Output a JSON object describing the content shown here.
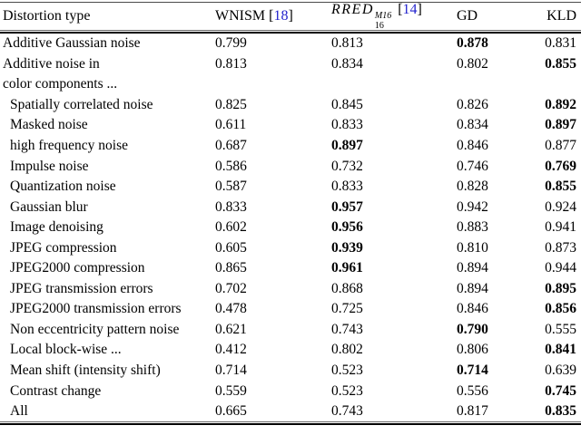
{
  "colors": {
    "link_blue": "#2323cd",
    "text": "#000000",
    "rule": "#000000"
  },
  "header": {
    "distortion_type": "Distortion type",
    "cite_open": "[",
    "cite_close": "]",
    "wnism": {
      "name": "WNISM",
      "cite": "18"
    },
    "rred": {
      "base": "RRED",
      "sup": "M16",
      "sub": "16",
      "cite": "14"
    },
    "gd": "GD",
    "kld": "KLD"
  },
  "rows": [
    {
      "label": "Additive Gaussian noise",
      "indent": false,
      "values": [
        {
          "text": "0.799",
          "bold": false
        },
        {
          "text": "0.813",
          "bold": false
        },
        {
          "text": "0.878",
          "bold": true
        },
        {
          "text": "0.831",
          "bold": false
        }
      ]
    },
    {
      "label": "Additive noise in",
      "indent": false,
      "values": [
        {
          "text": "0.813",
          "bold": false
        },
        {
          "text": "0.834",
          "bold": false
        },
        {
          "text": "0.802",
          "bold": false
        },
        {
          "text": "0.855",
          "bold": true
        }
      ]
    },
    {
      "label": "color components ...",
      "indent": false,
      "values": []
    },
    {
      "label": "Spatially correlated noise",
      "indent": true,
      "values": [
        {
          "text": "0.825",
          "bold": false
        },
        {
          "text": "0.845",
          "bold": false
        },
        {
          "text": "0.826",
          "bold": false
        },
        {
          "text": "0.892",
          "bold": true
        }
      ]
    },
    {
      "label": "Masked noise",
      "indent": true,
      "values": [
        {
          "text": "0.611",
          "bold": false
        },
        {
          "text": "0.833",
          "bold": false
        },
        {
          "text": "0.834",
          "bold": false
        },
        {
          "text": "0.897",
          "bold": true
        }
      ]
    },
    {
      "label": "high frequency noise",
      "indent": true,
      "values": [
        {
          "text": "0.687",
          "bold": false
        },
        {
          "text": "0.897",
          "bold": true
        },
        {
          "text": "0.846",
          "bold": false
        },
        {
          "text": "0.877",
          "bold": false
        }
      ]
    },
    {
      "label": "Impulse noise",
      "indent": true,
      "values": [
        {
          "text": "0.586",
          "bold": false
        },
        {
          "text": "0.732",
          "bold": false
        },
        {
          "text": "0.746",
          "bold": false
        },
        {
          "text": "0.769",
          "bold": true
        }
      ]
    },
    {
      "label": "Quantization noise",
      "indent": true,
      "values": [
        {
          "text": "0.587",
          "bold": false
        },
        {
          "text": "0.833",
          "bold": false
        },
        {
          "text": "0.828",
          "bold": false
        },
        {
          "text": "0.855",
          "bold": true
        }
      ]
    },
    {
      "label": "Gaussian blur",
      "indent": true,
      "values": [
        {
          "text": "0.833",
          "bold": false
        },
        {
          "text": "0.957",
          "bold": true
        },
        {
          "text": "0.942",
          "bold": false
        },
        {
          "text": "0.924",
          "bold": false
        }
      ]
    },
    {
      "label": "Image denoising",
      "indent": true,
      "values": [
        {
          "text": "0.602",
          "bold": false
        },
        {
          "text": "0.956",
          "bold": true
        },
        {
          "text": "0.883",
          "bold": false
        },
        {
          "text": "0.941",
          "bold": false
        }
      ]
    },
    {
      "label": "JPEG compression",
      "indent": true,
      "values": [
        {
          "text": "0.605",
          "bold": false
        },
        {
          "text": "0.939",
          "bold": true
        },
        {
          "text": "0.810",
          "bold": false
        },
        {
          "text": "0.873",
          "bold": false
        }
      ]
    },
    {
      "label": "JPEG2000 compression",
      "indent": true,
      "values": [
        {
          "text": "0.865",
          "bold": false
        },
        {
          "text": "0.961",
          "bold": true
        },
        {
          "text": "0.894",
          "bold": false
        },
        {
          "text": "0.944",
          "bold": false
        }
      ]
    },
    {
      "label": "JPEG transmission errors",
      "indent": true,
      "values": [
        {
          "text": "0.702",
          "bold": false
        },
        {
          "text": "0.868",
          "bold": false
        },
        {
          "text": "0.894",
          "bold": false
        },
        {
          "text": "0.895",
          "bold": true
        }
      ]
    },
    {
      "label": "JPEG2000 transmission errors",
      "indent": true,
      "values": [
        {
          "text": "0.478",
          "bold": false
        },
        {
          "text": "0.725",
          "bold": false
        },
        {
          "text": "0.846",
          "bold": false
        },
        {
          "text": "0.856",
          "bold": true
        }
      ]
    },
    {
      "label": "Non eccentricity pattern noise",
      "indent": true,
      "values": [
        {
          "text": "0.621",
          "bold": false
        },
        {
          "text": "0.743",
          "bold": false
        },
        {
          "text": "0.790",
          "bold": true
        },
        {
          "text": "0.555",
          "bold": false
        }
      ]
    },
    {
      "label": "Local block-wise ...",
      "indent": true,
      "values": [
        {
          "text": "0.412",
          "bold": false
        },
        {
          "text": "0.802",
          "bold": false
        },
        {
          "text": "0.806",
          "bold": false
        },
        {
          "text": "0.841",
          "bold": true
        }
      ]
    },
    {
      "label": "Mean shift (intensity shift)",
      "indent": true,
      "values": [
        {
          "text": "0.714",
          "bold": false
        },
        {
          "text": "0.523",
          "bold": false
        },
        {
          "text": "0.714",
          "bold": true
        },
        {
          "text": "0.639",
          "bold": false
        }
      ]
    },
    {
      "label": "Contrast change",
      "indent": true,
      "values": [
        {
          "text": "0.559",
          "bold": false
        },
        {
          "text": "0.523",
          "bold": false
        },
        {
          "text": "0.556",
          "bold": false
        },
        {
          "text": "0.745",
          "bold": true
        }
      ]
    },
    {
      "label": "All",
      "indent": true,
      "values": [
        {
          "text": "0.665",
          "bold": false
        },
        {
          "text": "0.743",
          "bold": false
        },
        {
          "text": "0.817",
          "bold": false
        },
        {
          "text": "0.835",
          "bold": true
        }
      ]
    }
  ]
}
